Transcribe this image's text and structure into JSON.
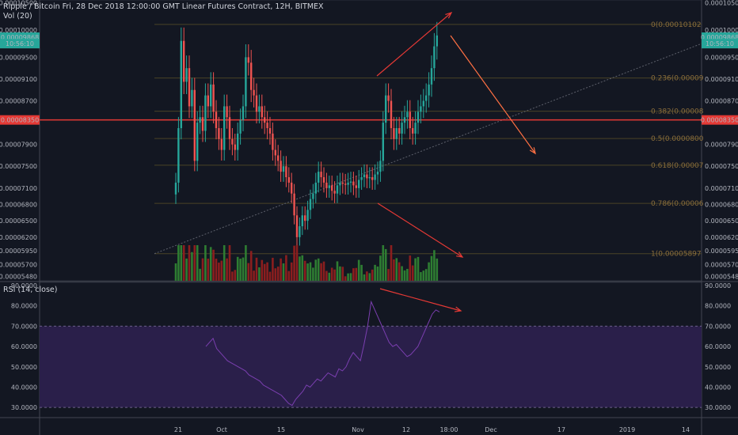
{
  "header": {
    "title": "Ripple / Bitcoin Fri, 28 Dec 2018 12:00:00 GMT Linear Futures Contract, 12H, BITMEX",
    "vol_label": "Vol (20)",
    "rsi_label": "RSI (14, close)"
  },
  "colors": {
    "background": "#131722",
    "up": "#26a69a",
    "down": "#ef5350",
    "vol_up": "#2e7d32",
    "vol_down": "#8b1e1e",
    "fib_line": "#4a4326",
    "rsi_line": "#7b3fb0",
    "rsi_band": "#2a1f4a",
    "arrow": "#e53935",
    "arrow2": "#ff7043",
    "price_red": "#e53935",
    "price_teal": "#26a69a"
  },
  "chart_data": [
    {
      "type": "candlestick",
      "title": "Ripple / Bitcoin Fri, 28 Dec 2018 12:00:00 GMT Linear Futures Contract, 12H, BITMEX",
      "x_ticks": [
        "21",
        "Oct",
        "15",
        "Nov",
        "12",
        "18:00",
        "Dec",
        "17",
        "2019",
        "14"
      ],
      "y_ticks": [
        "0.00010500",
        "0.00010000",
        "0.00009500",
        "0.00009100",
        "0.00008700",
        "0.00007900",
        "0.00007500",
        "0.00007100",
        "0.00006800",
        "0.00006500",
        "0.00006200",
        "0.00005950",
        "0.00005700",
        "0.00005480"
      ],
      "ylim": [
        5.4e-05,
        0.0001055
      ],
      "price_labels": [
        {
          "text": "0.00009868",
          "value": 9.868e-05,
          "color": "#26a69a",
          "side": "both"
        },
        {
          "text": "10:56:10",
          "value": 9.75e-05,
          "color": "#26a69a",
          "side": "both"
        },
        {
          "text": "0.00008350",
          "value": 8.35e-05,
          "color": "#e53935",
          "side": "both"
        }
      ],
      "horizontal_line": {
        "value": 8.35e-05,
        "color": "#e53935"
      },
      "fib_levels": [
        {
          "label": "0(0.00010102",
          "value": 0.00010102
        },
        {
          "label": "0.236(0.00009",
          "value": 9.12e-05
        },
        {
          "label": "0.382(0.00008",
          "value": 8.51e-05
        },
        {
          "label": "0.5(0.0000800",
          "value": 8.01e-05
        },
        {
          "label": "0.618(0.00007",
          "value": 7.52e-05
        },
        {
          "label": "0.786(0.00006",
          "value": 6.82e-05
        },
        {
          "label": "1(0.00005897",
          "value": 5.897e-05
        }
      ],
      "candle_closes": [
        7.2e-05,
        8.2e-05,
        9.8e-05,
        9.05e-05,
        9.3e-05,
        8.6e-05,
        8.9e-05,
        7.6e-05,
        8.3e-05,
        8.4e-05,
        8.15e-05,
        8.8e-05,
        8.6e-05,
        9e-05,
        8.5e-05,
        8.2e-05,
        8e-05,
        7.8e-05,
        8.6e-05,
        8.4e-05,
        8e-05,
        7.9e-05,
        7.8e-05,
        8.1e-05,
        8.35e-05,
        8.6e-05,
        9.5e-05,
        9.4e-05,
        8.9e-05,
        8.8e-05,
        8.5e-05,
        8.6e-05,
        8.4e-05,
        8.3e-05,
        8.2e-05,
        8.1e-05,
        7.8e-05,
        7.7e-05,
        7.6e-05,
        7.4e-05,
        7.5e-05,
        7.3e-05,
        7.2e-05,
        7e-05,
        6.6e-05,
        6.2e-05,
        6.4e-05,
        6.6e-05,
        6.5e-05,
        6.7e-05,
        6.9e-05,
        7e-05,
        7.2e-05,
        7.4e-05,
        7.3e-05,
        7.2e-05,
        7.1e-05,
        7.15e-05,
        7.05e-05,
        7e-05,
        7.15e-05,
        7.2e-05,
        7.18e-05,
        7.16e-05,
        7.2e-05,
        7.22e-05,
        7.15e-05,
        7.1e-05,
        7.25e-05,
        7.3e-05,
        7.35e-05,
        7.28e-05,
        7.3e-05,
        7.25e-05,
        7.35e-05,
        7.4e-05,
        7.6e-05,
        8.3e-05,
        8.8e-05,
        8.7e-05,
        8.2e-05,
        8e-05,
        8.2e-05,
        8.1e-05,
        8.3e-05,
        8.4e-05,
        8.5e-05,
        8.2e-05,
        8.1e-05,
        8.3e-05,
        8.5e-05,
        8.6e-05,
        8.7e-05,
        8.8e-05,
        9e-05,
        9.3e-05,
        9.7e-05,
        9.9e-05
      ]
    },
    {
      "type": "line",
      "title": "RSI (14, close)",
      "y_ticks": [
        "90.0000",
        "80.0000",
        "70.0000",
        "60.0000",
        "50.0000",
        "40.0000",
        "30.0000"
      ],
      "ylim": [
        25,
        90
      ],
      "band": [
        30,
        70
      ],
      "values": [
        60,
        62,
        64,
        59,
        57,
        55,
        53,
        52,
        51,
        50,
        49,
        48,
        46,
        45,
        44,
        43,
        41,
        40,
        39,
        38,
        37,
        36,
        34,
        32,
        31,
        34,
        36,
        38,
        41,
        40,
        42,
        44,
        43,
        45,
        47,
        46,
        45,
        49,
        48,
        50,
        54,
        57,
        55,
        53,
        61,
        70,
        82,
        78,
        74,
        70,
        66,
        62,
        60,
        61,
        59,
        57,
        55,
        56,
        58,
        60,
        64,
        68,
        72,
        76,
        78,
        77
      ]
    }
  ],
  "annotations": {
    "fib_start_label": "0(0.00010102"
  }
}
